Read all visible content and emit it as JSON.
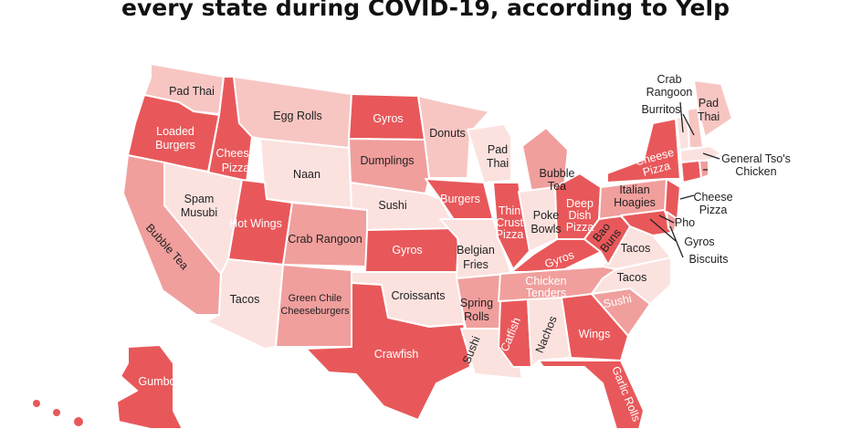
{
  "title": "every state during COVID-19, according to Yelp",
  "colors": {
    "strong": "#e8585a",
    "medium": "#f09f9d",
    "light": "#f7c6c3",
    "faint": "#fbe2df",
    "text_dark": "#222222",
    "text_light": "#ffffff"
  },
  "states": [
    {
      "state": "WA",
      "food": "Pad Thai"
    },
    {
      "state": "OR",
      "food": "Loaded Burgers"
    },
    {
      "state": "ID",
      "food": "Cheese Pizza"
    },
    {
      "state": "MT",
      "food": "Egg Rolls"
    },
    {
      "state": "ND",
      "food": "Gyros"
    },
    {
      "state": "MN",
      "food": "Donuts"
    },
    {
      "state": "WY",
      "food": "Naan"
    },
    {
      "state": "SD",
      "food": "Dumplings"
    },
    {
      "state": "NV",
      "food": "Spam Musubi"
    },
    {
      "state": "CA",
      "food": "Bubble Tea"
    },
    {
      "state": "UT",
      "food": "Hot Wings"
    },
    {
      "state": "CO",
      "food": "Crab Rangoon"
    },
    {
      "state": "NE",
      "food": "Sushi"
    },
    {
      "state": "KS",
      "food": "Gyros"
    },
    {
      "state": "AZ",
      "food": "Tacos"
    },
    {
      "state": "NM",
      "food": "Green Chile Cheeseburgers"
    },
    {
      "state": "OK",
      "food": "Croissants"
    },
    {
      "state": "TX",
      "food": "Crawfish"
    },
    {
      "state": "IA",
      "food": "Burgers"
    },
    {
      "state": "MO",
      "food": "Belgian Fries"
    },
    {
      "state": "AR",
      "food": "Spring Rolls"
    },
    {
      "state": "LA",
      "food": "Sushi"
    },
    {
      "state": "WI",
      "food": "Pad Thai"
    },
    {
      "state": "IL",
      "food": "Thin Crust Pizza"
    },
    {
      "state": "MI",
      "food": "Bubble Tea"
    },
    {
      "state": "IN",
      "food": "Poke Bowls"
    },
    {
      "state": "OH",
      "food": "Deep Dish Pizza"
    },
    {
      "state": "KY",
      "food": "Gyros"
    },
    {
      "state": "TN",
      "food": "Chicken Tenders"
    },
    {
      "state": "MS",
      "food": "Catfish"
    },
    {
      "state": "AL",
      "food": "Nachos"
    },
    {
      "state": "GA",
      "food": "Wings"
    },
    {
      "state": "FL",
      "food": "Garlic Rolls"
    },
    {
      "state": "SC",
      "food": "Sushi"
    },
    {
      "state": "NC",
      "food": "Tacos"
    },
    {
      "state": "VA",
      "food": "Tacos"
    },
    {
      "state": "WV",
      "food": "Bao Buns"
    },
    {
      "state": "PA",
      "food": "Italian Hoagies"
    },
    {
      "state": "NY",
      "food": "Cheese Pizza"
    },
    {
      "state": "ME",
      "food": "Pad Thai"
    },
    {
      "state": "NH",
      "food": "Burritos"
    },
    {
      "state": "VT",
      "food": "Crab Rangoon"
    },
    {
      "state": "MA",
      "food": "General Tso's Chicken"
    },
    {
      "state": "NJ",
      "food": "Cheese Pizza"
    },
    {
      "state": "MD",
      "food": "Pho"
    },
    {
      "state": "DC",
      "food": "Gyros"
    },
    {
      "state": "DE",
      "food": "Biscuits"
    },
    {
      "state": "AK",
      "food": "Gumbo"
    }
  ],
  "labels": {
    "wa": "Pad Thai",
    "or_1": "Loaded",
    "or_2": "Burgers",
    "id_1": "Cheese",
    "id_2": "Pizza",
    "mt": "Egg Rolls",
    "nd": "Gyros",
    "mn": "Donuts",
    "wy": "Naan",
    "sd": "Dumplings",
    "nv_1": "Spam",
    "nv_2": "Musubi",
    "ca": "Bubble Tea",
    "ut": "Hot Wings",
    "co": "Crab Rangoon",
    "ne": "Sushi",
    "ks": "Gyros",
    "az": "Tacos",
    "nm_1": "Green Chile",
    "nm_2": "Cheeseburgers",
    "ok": "Croissants",
    "tx": "Crawfish",
    "ia": "Burgers",
    "mo_1": "Belgian",
    "mo_2": "Fries",
    "ar_1": "Spring",
    "ar_2": "Rolls",
    "la": "Sushi",
    "wi_1": "Pad",
    "wi_2": "Thai",
    "il_1": "Thin",
    "il_2": "Crust",
    "il_3": "Pizza",
    "mi_1": "Bubble",
    "mi_2": "Tea",
    "in_1": "Poke",
    "in_2": "Bowls",
    "oh_1": "Deep",
    "oh_2": "Dish",
    "oh_3": "Pizza",
    "ky": "Gyros",
    "tn_1": "Chicken",
    "tn_2": "Tenders",
    "ms": "Catfish",
    "al": "Nachos",
    "ga": "Wings",
    "fl": "Garlic Rolls",
    "sc": "Sushi",
    "nc": "Tacos",
    "va": "Tacos",
    "wv_1": "Bao",
    "wv_2": "Buns",
    "pa_1": "Italian",
    "pa_2": "Hoagies",
    "ny_1": "Cheese",
    "ny_2": "Pizza",
    "me_1": "Pad",
    "me_2": "Thai",
    "vt_1": "Crab",
    "vt_2": "Rangoon",
    "nh": "Burritos",
    "ma_1": "General Tso's",
    "ma_2": "Chicken",
    "nj_1": "Cheese",
    "nj_2": "Pizza",
    "md": "Pho",
    "dc": "Gyros",
    "de": "Biscuits",
    "ak": "Gumbo"
  }
}
